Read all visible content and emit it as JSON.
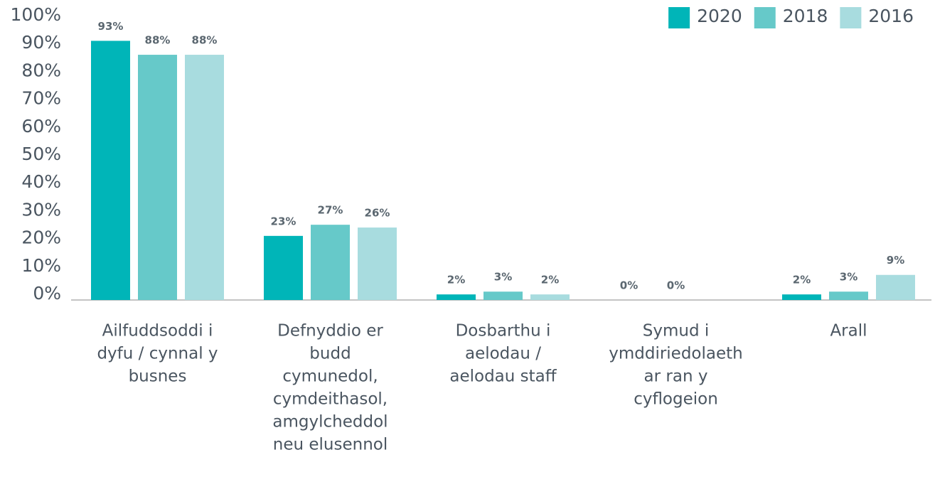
{
  "chart_data": {
    "type": "bar",
    "categories": [
      [
        "Ailfuddsoddi i",
        "dyfu / cynnal y",
        "busnes"
      ],
      [
        "Defnyddio er",
        "budd",
        "cymunedol,",
        "cymdeithasol,",
        "amgylcheddol",
        "neu elusennol"
      ],
      [
        "Dosbarthu i",
        "aelodau /",
        "aelodau staff"
      ],
      [
        "Symud i",
        "ymddiriedolaeth",
        "ar ran y",
        "cyflogeion"
      ],
      [
        "Arall"
      ]
    ],
    "series": [
      {
        "name": "2020",
        "color": "#00b5b8",
        "values": [
          93,
          23,
          2,
          0,
          2
        ],
        "value_labels": [
          "93%",
          "23%",
          "2%",
          "0%",
          "2%"
        ]
      },
      {
        "name": "2018",
        "color": "#66c9c9",
        "values": [
          88,
          27,
          3,
          0,
          3
        ],
        "value_labels": [
          "88%",
          "27%",
          "3%",
          "0%",
          "3%"
        ]
      },
      {
        "name": "2016",
        "color": "#a8dcdf",
        "values": [
          88,
          26,
          2,
          null,
          9
        ],
        "value_labels": [
          "88%",
          "26%",
          "2%",
          null,
          "9%"
        ]
      }
    ],
    "ylim": [
      0,
      100
    ],
    "yticks": [
      {
        "value": 0,
        "label": "0%"
      },
      {
        "value": 10,
        "label": "10%"
      },
      {
        "value": 20,
        "label": "20%"
      },
      {
        "value": 30,
        "label": "30%"
      },
      {
        "value": 40,
        "label": "40%"
      },
      {
        "value": 50,
        "label": "50%"
      },
      {
        "value": 60,
        "label": "60%"
      },
      {
        "value": 70,
        "label": "70%"
      },
      {
        "value": 80,
        "label": "80%"
      },
      {
        "value": 90,
        "label": "90%"
      },
      {
        "value": 100,
        "label": "100%"
      }
    ],
    "legend": "top-right"
  }
}
